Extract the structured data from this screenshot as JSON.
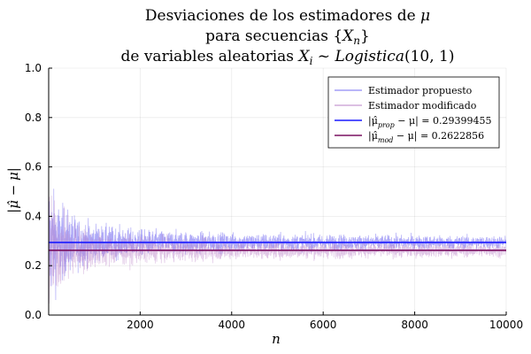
{
  "chart_data": {
    "type": "line",
    "title_lines": [
      "Desviaciones de los estimadores de μ",
      "para secuencias {X_n}",
      "de variables aleatorias X_i ~ Logistica(10, 1)"
    ],
    "xlabel": "n",
    "ylabel": "|μ̂ − μ|",
    "xlim": [
      1,
      10000
    ],
    "ylim": [
      0.0,
      1.0
    ],
    "x_ticks": [
      2000,
      4000,
      6000,
      8000,
      10000
    ],
    "x_tick_labels": [
      "2000",
      "4000",
      "6000",
      "8000",
      "10000"
    ],
    "y_ticks": [
      0.0,
      0.2,
      0.4,
      0.6,
      0.8,
      1.0
    ],
    "y_tick_labels": [
      "0.0",
      "0.2",
      "0.4",
      "0.6",
      "0.8",
      "1.0"
    ],
    "grid": true,
    "legend_position": "top-right",
    "series": [
      {
        "name": "Estimador propuesto",
        "kind": "noisy-line",
        "color": "#6b63f0",
        "mean": 0.29399455,
        "envelope": [
          {
            "n": 1,
            "halfwidth": 0.7
          },
          {
            "n": 200,
            "halfwidth": 0.3
          },
          {
            "n": 1000,
            "halfwidth": 0.13
          },
          {
            "n": 2000,
            "halfwidth": 0.09
          },
          {
            "n": 5000,
            "halfwidth": 0.06
          },
          {
            "n": 10000,
            "halfwidth": 0.045
          }
        ]
      },
      {
        "name": "Estimador modificado",
        "kind": "noisy-line",
        "color": "#b77fc6",
        "mean": 0.2622856,
        "envelope": [
          {
            "n": 1,
            "halfwidth": 0.7
          },
          {
            "n": 200,
            "halfwidth": 0.3
          },
          {
            "n": 1000,
            "halfwidth": 0.13
          },
          {
            "n": 2000,
            "halfwidth": 0.09
          },
          {
            "n": 5000,
            "halfwidth": 0.06
          },
          {
            "n": 10000,
            "halfwidth": 0.045
          }
        ]
      },
      {
        "name": "|μ̂_prop − μ| = 0.29399455",
        "kind": "hline",
        "color": "#1a1aff",
        "value": 0.29399455
      },
      {
        "name": "|μ̂_mod − μ| = 0.2622856",
        "kind": "hline",
        "color": "#7a1060",
        "value": 0.2622856
      }
    ]
  },
  "legend": {
    "entries": [
      {
        "label": "Estimador propuesto",
        "color": "#8f8af5"
      },
      {
        "label": "Estimador modificado",
        "color": "#c69ad2"
      },
      {
        "prefix": "|μ̂",
        "sub": "prop",
        "suffix": " − μ| = 0.29399455",
        "color": "#1a1aff"
      },
      {
        "prefix": "|μ̂",
        "sub": "mod",
        "suffix": " − μ| = 0.2622856",
        "color": "#7a1060"
      }
    ]
  }
}
